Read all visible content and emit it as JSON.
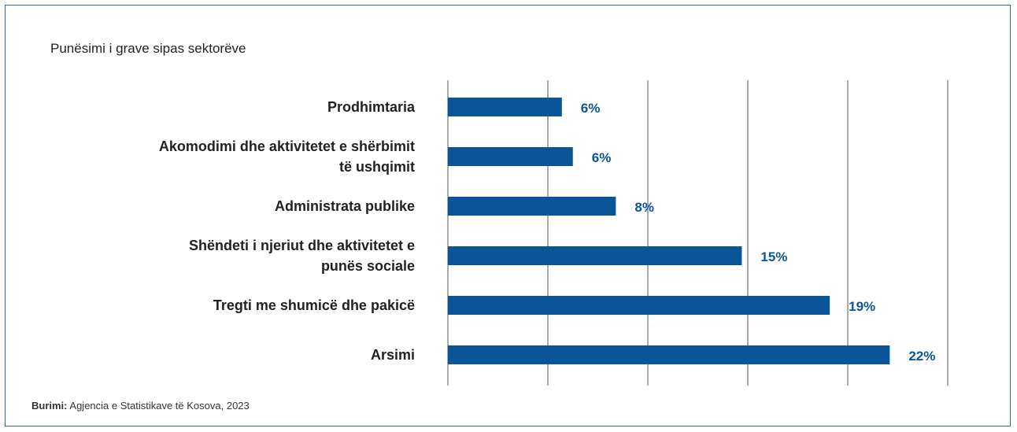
{
  "chart_data": {
    "type": "bar",
    "orientation": "horizontal",
    "title": "Punësimi i grave sipas sektorëve",
    "categories": [
      [
        "Prodhimtaria"
      ],
      [
        "Akomodimi dhe aktivitetet e shërbimit",
        "të ushqimit"
      ],
      [
        "Administrata publike"
      ],
      [
        "Shëndeti i njeriut dhe aktivitetet e",
        "punës sociale"
      ],
      [
        "Tregti me shumicë dhe pakicë"
      ],
      [
        "Arsimi"
      ]
    ],
    "values": [
      5.7,
      6.25,
      8.4,
      14.7,
      19.1,
      22.1
    ],
    "data_labels": [
      "6%",
      "6%",
      "8%",
      "15%",
      "19%",
      "22%"
    ],
    "xlim": [
      0,
      25
    ],
    "x_grid_step": 5,
    "grid": true,
    "xlabel": "",
    "ylabel": "",
    "legend": "none",
    "bar_color": "#0a5597",
    "label_color": "#0a5597"
  },
  "source": {
    "label": "Burimi:",
    "text": "Agjencia e Statistikave të Kosova, 2023"
  }
}
